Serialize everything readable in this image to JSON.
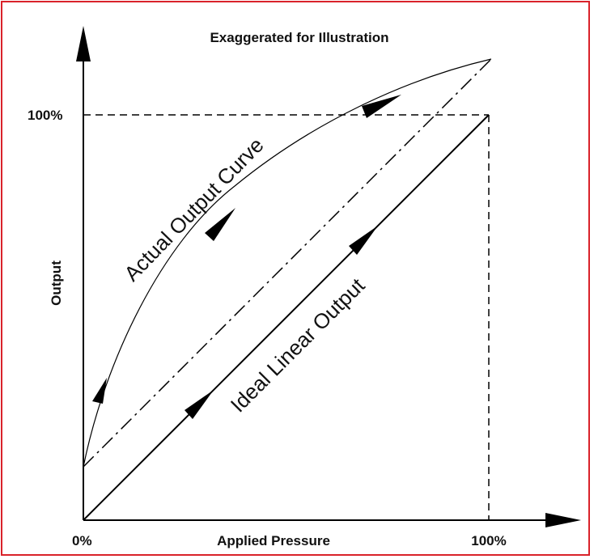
{
  "diagram": {
    "title": "Exaggerated for Illustration",
    "y_axis_label": "Output",
    "x_axis_label": "Applied Pressure",
    "y_tick_100": "100%",
    "x_tick_0": "0%",
    "x_tick_100": "100%",
    "actual_curve_label": "Actual Output Curve",
    "ideal_line_label": "Ideal Linear Output",
    "frame_color": "#d9222a",
    "line_color": "#000000"
  }
}
